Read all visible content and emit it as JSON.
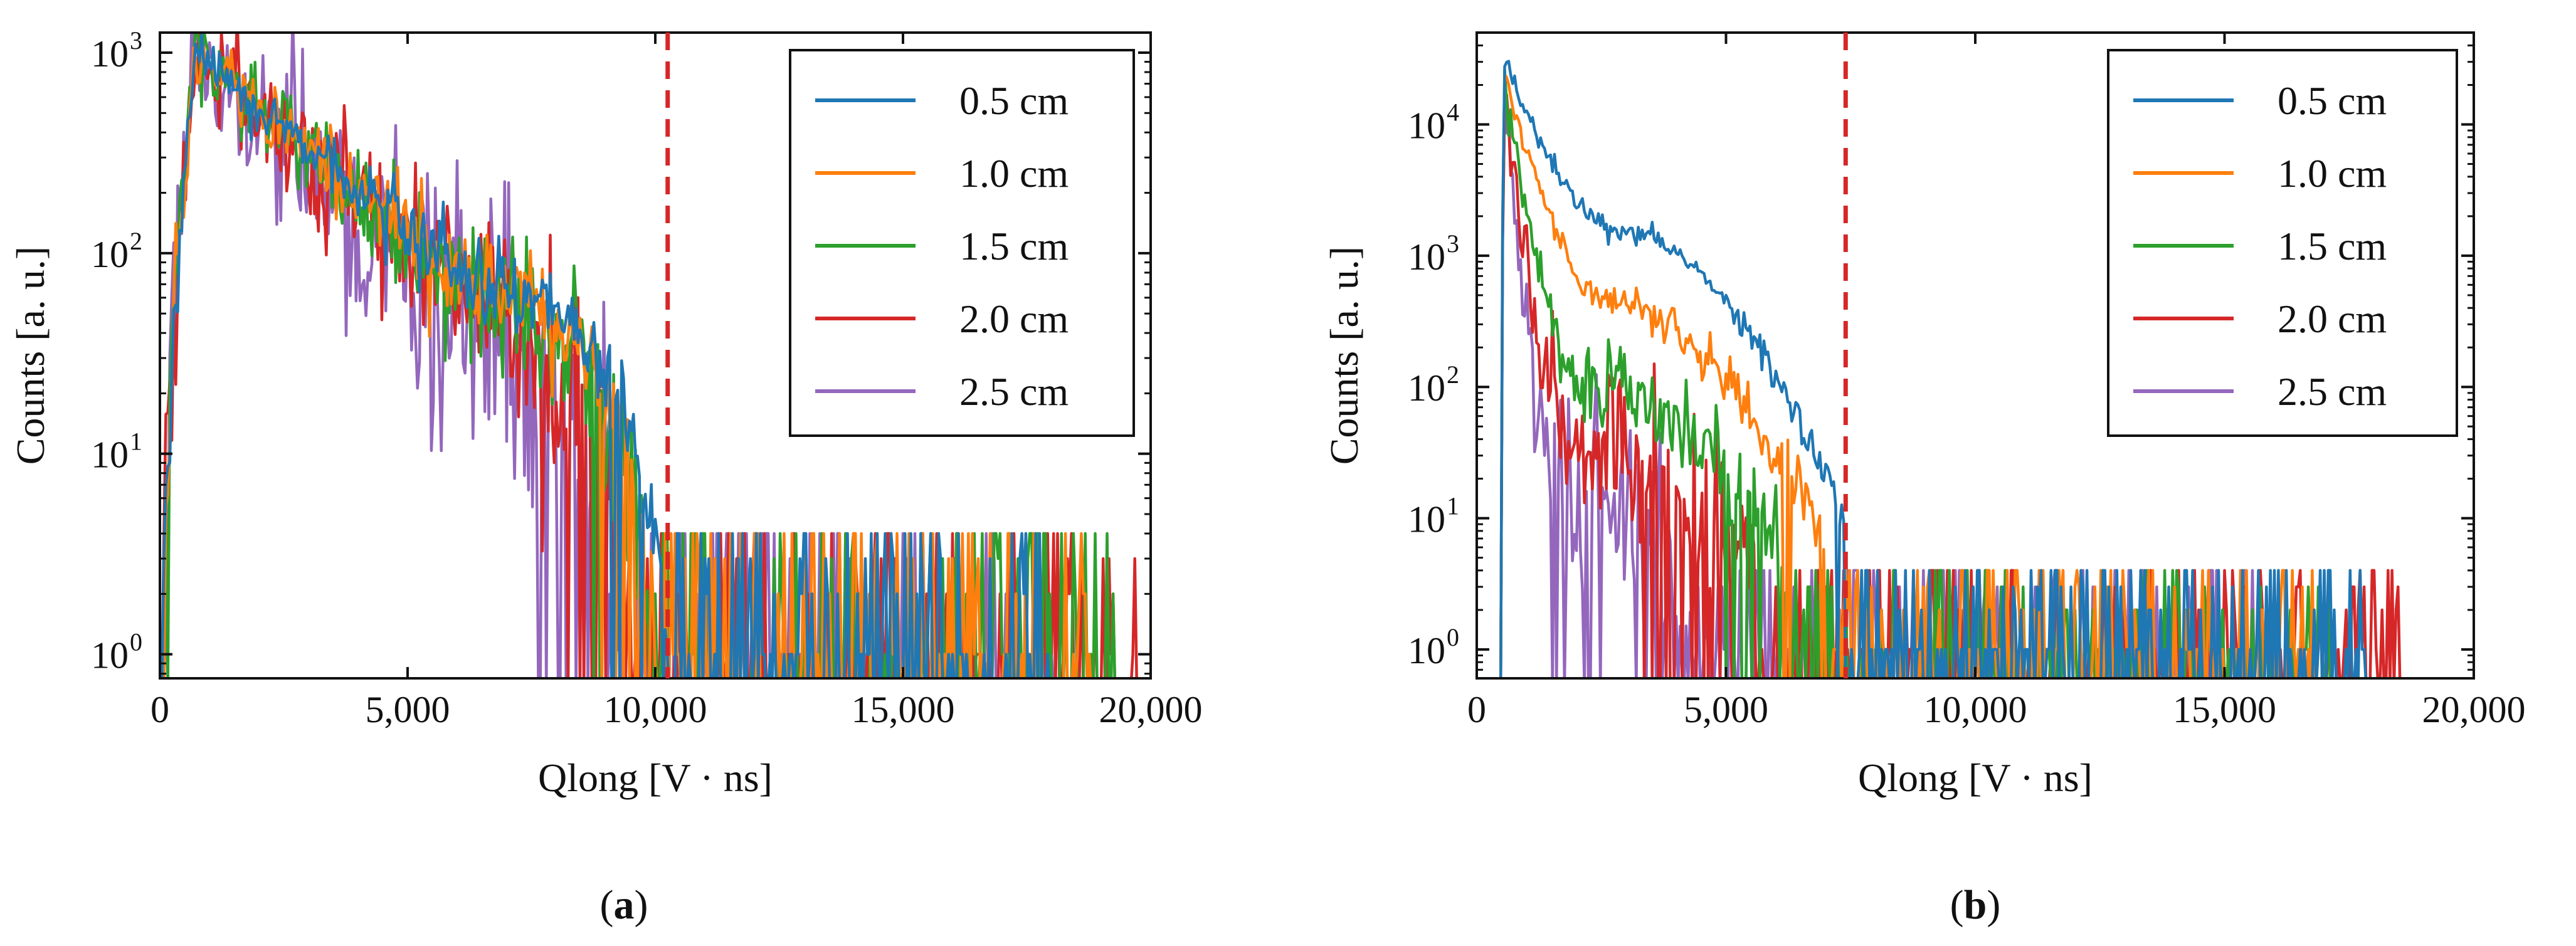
{
  "chart_data": [
    {
      "panel": "a",
      "type": "line",
      "scale_y": "log",
      "xlabel": "Qlong [V · ns]",
      "ylabel": "Counts [a. u.]",
      "xlim": [
        0,
        20000
      ],
      "ylim_exp": [
        -0.12,
        3.1
      ],
      "x_ticks": [
        0,
        5000,
        10000,
        15000,
        20000
      ],
      "x_tick_labels": [
        "0",
        "5,000",
        "10,000",
        "15,000",
        "20,000"
      ],
      "y_tick_exps": [
        0,
        1,
        2,
        3
      ],
      "y_tick_base": "10",
      "y_tick_sup": [
        "0",
        "1",
        "2",
        "3"
      ],
      "threshold_x": 10250,
      "legend_position": "top-right",
      "series": [
        {
          "name": "0.5 cm",
          "color": "#1f77b4",
          "peak_x": 700,
          "peak_y": 1000,
          "slope_per_1000": 0.21,
          "bump_x": 8000,
          "bump_amp": 0.25,
          "end_x": 10250,
          "noise": 0.05,
          "tail_end_x": 18000,
          "rise_start_x": 40
        },
        {
          "name": "1.0 cm",
          "color": "#ff7f0e",
          "peak_x": 700,
          "peak_y": 1000,
          "slope_per_1000": 0.21,
          "bump_x": 7600,
          "bump_amp": 0.2,
          "end_x": 10000,
          "noise": 0.07,
          "tail_end_x": 18800,
          "rise_start_x": 40
        },
        {
          "name": "1.5 cm",
          "color": "#2ca02c",
          "peak_x": 700,
          "peak_y": 1000,
          "slope_per_1000": 0.22,
          "bump_x": 7300,
          "bump_amp": 0.15,
          "end_x": 9900,
          "noise": 0.09,
          "tail_end_x": 19500,
          "rise_start_x": 40
        },
        {
          "name": "2.0 cm",
          "color": "#d62728",
          "peak_x": 700,
          "peak_y": 1000,
          "slope_per_1000": 0.23,
          "bump_x": 7000,
          "bump_amp": 0.1,
          "end_x": 9700,
          "noise": 0.12,
          "tail_end_x": 19800,
          "rise_start_x": 40
        },
        {
          "name": "2.5 cm",
          "color": "#9467bd",
          "peak_x": 700,
          "peak_y": 1000,
          "slope_per_1000": 0.25,
          "bump_x": 6800,
          "bump_amp": 0.05,
          "end_x": 9300,
          "noise": 0.16,
          "tail_end_x": 18000,
          "rise_start_x": 40
        }
      ]
    },
    {
      "panel": "b",
      "type": "line",
      "scale_y": "log",
      "xlabel": "Qlong [V · ns]",
      "ylabel": "Counts [a. u.]",
      "xlim": [
        0,
        20000
      ],
      "ylim_exp": [
        -0.22,
        4.7
      ],
      "x_ticks": [
        0,
        5000,
        10000,
        15000,
        20000
      ],
      "x_tick_labels": [
        "0",
        "5,000",
        "10,000",
        "15,000",
        "20,000"
      ],
      "y_tick_exps": [
        0,
        1,
        2,
        3,
        4
      ],
      "y_tick_base": "10",
      "y_tick_sup": [
        "0",
        "1",
        "2",
        "3",
        "4"
      ],
      "threshold_x": 7400,
      "legend_position": "top-right",
      "series": [
        {
          "name": "0.5 cm",
          "color": "#1f77b4",
          "peak_x": 550,
          "peak_y": 32000,
          "knee_x": 3000,
          "knee_y": 1500,
          "end_x": 7400,
          "end_y": 10,
          "noise": 0.04,
          "tail_end_x": 17800,
          "rise_start_x": 480
        },
        {
          "name": "1.0 cm",
          "color": "#ff7f0e",
          "peak_x": 550,
          "peak_y": 26000,
          "knee_x": 2700,
          "knee_y": 450,
          "end_x": 7000,
          "end_y": 6,
          "noise": 0.06,
          "tail_end_x": 16900,
          "rise_start_x": 480
        },
        {
          "name": "1.5 cm",
          "color": "#2ca02c",
          "peak_x": 550,
          "peak_y": 21000,
          "knee_x": 2200,
          "knee_y": 110,
          "end_x": 6300,
          "end_y": 5,
          "noise": 0.1,
          "tail_end_x": 17100,
          "rise_start_x": 480
        },
        {
          "name": "2.0 cm",
          "color": "#d62728",
          "peak_x": 550,
          "peak_y": 18500,
          "knee_x": 1900,
          "knee_y": 40,
          "end_x": 5600,
          "end_y": 3,
          "noise": 0.13,
          "tail_end_x": 18500,
          "rise_start_x": 480
        },
        {
          "name": "2.5 cm",
          "color": "#9467bd",
          "peak_x": 550,
          "peak_y": 17000,
          "knee_x": 1600,
          "knee_y": 22,
          "end_x": 4300,
          "end_y": 2,
          "noise": 0.16,
          "tail_end_x": 15800,
          "rise_start_x": 480
        }
      ]
    }
  ],
  "captions": {
    "a": "a",
    "b": "b"
  }
}
